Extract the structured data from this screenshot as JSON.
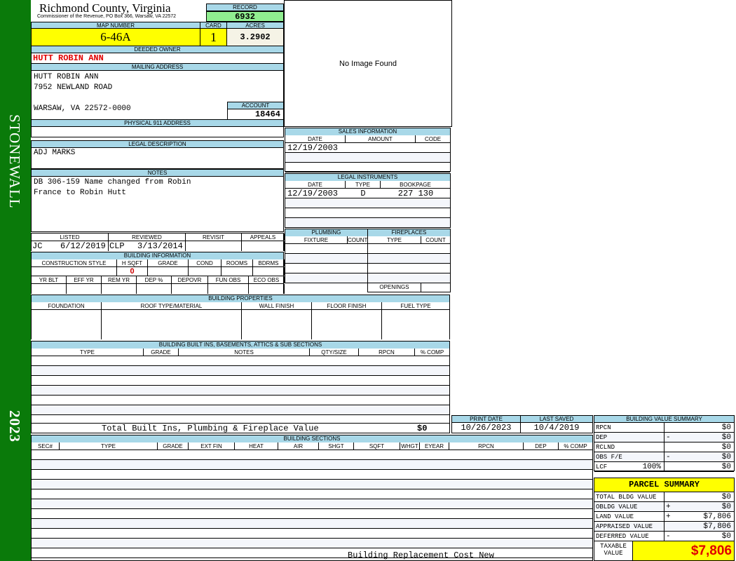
{
  "sidebar": {
    "district": "STONEWALL",
    "year": "2023"
  },
  "header": {
    "county": "Richmond County, Virginia",
    "office": "Commissioner of the Revenue, PO Box 366, Warsaw, VA 22572",
    "record_label": "RECORD",
    "record": "6932"
  },
  "parcel": {
    "map_label": "MAP NUMBER",
    "map": "6-46A",
    "card_label": "CARD",
    "card": "1",
    "acres_label": "ACRES",
    "acres": "3.2902"
  },
  "owner": {
    "label": "DEEDED OWNER",
    "name": "HUTT ROBIN ANN"
  },
  "mailing": {
    "label": "MAILING ADDRESS",
    "line1": "HUTT ROBIN ANN",
    "line2": "7952 NEWLAND ROAD",
    "line3": "WARSAW, VA 22572-0000",
    "account_label": "ACCOUNT",
    "account": "18464"
  },
  "physical": {
    "label": "PHYSICAL 911 ADDRESS",
    "value": ""
  },
  "legal": {
    "label": "LEGAL DESCRIPTION",
    "value": "ADJ MARKS"
  },
  "notes": {
    "label": "NOTES",
    "line1": "DB 306-159 Name changed from Robin",
    "line2": "France to Robin Hutt"
  },
  "image": {
    "text": "No Image Found"
  },
  "review": {
    "cols": [
      "LISTED",
      "REVIEWED",
      "REVISIT",
      "APPEALS"
    ],
    "listed_by": "JC",
    "listed_date": "6/12/2019",
    "reviewed_by": "CLP",
    "reviewed_date": "3/13/2014"
  },
  "building_info": {
    "title": "BUILDING INFORMATION",
    "cols1": [
      "CONSTRUCTION STYLE",
      "H SQFT",
      "GRADE",
      "COND",
      "ROOMS",
      "BDRMS"
    ],
    "vals1": [
      "",
      "0",
      "",
      "",
      "",
      ""
    ],
    "cols2": [
      "YR BLT",
      "EFF YR",
      "REM YR",
      "DEP %",
      "DEPOVR",
      "FUN OBS",
      "ECO OBS"
    ]
  },
  "sales": {
    "title": "SALES INFORMATION",
    "cols": [
      "DATE",
      "AMOUNT",
      "CODE"
    ],
    "rows": [
      [
        "12/19/2003",
        "",
        ""
      ],
      [
        "",
        "",
        ""
      ],
      [
        "",
        "",
        ""
      ]
    ]
  },
  "instruments": {
    "title": "LEGAL INSTRUMENTS",
    "cols": [
      "DATE",
      "TYPE",
      "BOOKPAGE"
    ],
    "rows": [
      [
        "12/19/2003",
        "D",
        "227 130"
      ],
      [
        "",
        "",
        ""
      ],
      [
        "",
        "",
        ""
      ],
      [
        "",
        "",
        ""
      ]
    ]
  },
  "plumbing": {
    "title": "PLUMBING",
    "cols": [
      "FIXTURE",
      "COUNT"
    ]
  },
  "fireplaces": {
    "title": "FIREPLACES",
    "cols": [
      "TYPE",
      "COUNT"
    ],
    "openings_label": "OPENINGS"
  },
  "properties": {
    "title": "BUILDING PROPERTIES",
    "cols": [
      "FOUNDATION",
      "ROOF TYPE/MATERIAL",
      "WALL FINISH",
      "FLOOR FINISH",
      "FUEL TYPE"
    ]
  },
  "builtins": {
    "title": "BUILDING BUILT INS, BASEMENTS, ATTICS & SUB SECTIONS",
    "cols": [
      "TYPE",
      "GRADE",
      "NOTES",
      "QTY/SIZE",
      "RPCN",
      "% COMP"
    ],
    "total_label": "Total Built Ins, Plumbing & Fireplace Value",
    "total": "$0"
  },
  "dates": {
    "print_label": "PRINT DATE",
    "print": "10/26/2023",
    "saved_label": "LAST SAVED",
    "saved": "10/4/2019"
  },
  "sections": {
    "title": "BUILDING SECTIONS",
    "cols": [
      "SEC#",
      "TYPE",
      "GRADE",
      "EXT FIN",
      "HEAT",
      "AIR",
      "SHGT",
      "SQFT",
      "WHGT",
      "EYEAR",
      "RPCN",
      "DEP",
      "% COMP"
    ],
    "footer": "Building Replacement Cost New"
  },
  "value_summary": {
    "title": "BUILDING VALUE SUMMARY",
    "rows": [
      {
        "label": "RPCN",
        "sign": "",
        "value": "$0"
      },
      {
        "label": "DEP",
        "sign": "-",
        "value": "$0"
      },
      {
        "label": "RCLND",
        "sign": "",
        "value": "$0"
      },
      {
        "label": "OBS F/E",
        "sign": "-",
        "value": "$0"
      },
      {
        "label": "LCF",
        "pct": "100%",
        "sign": "",
        "value": "$0"
      }
    ]
  },
  "parcel_summary": {
    "title": "PARCEL SUMMARY",
    "rows": [
      {
        "label": "TOTAL BLDG VALUE",
        "sign": "",
        "value": "$0"
      },
      {
        "label": "OBLDG VALUE",
        "sign": "+",
        "value": "$0"
      },
      {
        "label": "LAND VALUE",
        "sign": "+",
        "value": "$7,806"
      },
      {
        "label": "APPRAISED VALUE",
        "sign": "",
        "value": "$7,806"
      },
      {
        "label": "DEFERRED VALUE",
        "sign": "-",
        "value": "$0"
      }
    ],
    "taxable_label": "TAXABLE VALUE",
    "taxable": "$7,806"
  },
  "colors": {
    "sidebar": "#0a7a0a",
    "header": "#a8d8e8",
    "highlight": "#ffff00",
    "record": "#90ee90",
    "owner": "#e00000"
  }
}
